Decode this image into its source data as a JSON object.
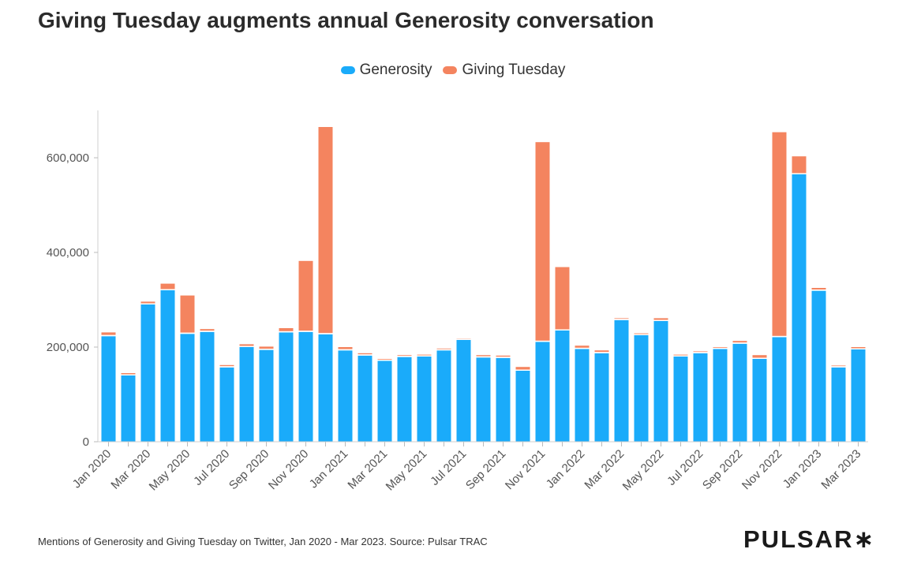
{
  "title": "Giving Tuesday augments annual Generosity conversation",
  "caption": "Mentions of Generosity and Giving Tuesday on Twitter, Jan 2020 - Mar 2023. Source: Pulsar TRAC",
  "logo": "PULSAR∗",
  "colors": {
    "generosity": "#1aabfa",
    "giving_tuesday": "#f4845f"
  },
  "chart_data": {
    "type": "bar",
    "stacked": true,
    "title": "Giving Tuesday augments annual Generosity conversation",
    "categories": [
      "Jan 2020",
      "Feb 2020",
      "Mar 2020",
      "Apr 2020",
      "May 2020",
      "Jun 2020",
      "Jul 2020",
      "Aug 2020",
      "Sep 2020",
      "Oct 2020",
      "Nov 2020",
      "Dec 2020",
      "Jan 2021",
      "Feb 2021",
      "Mar 2021",
      "Apr 2021",
      "May 2021",
      "Jun 2021",
      "Jul 2021",
      "Aug 2021",
      "Sep 2021",
      "Oct 2021",
      "Nov 2021",
      "Dec 2021",
      "Jan 2022",
      "Feb 2022",
      "Mar 2022",
      "Apr 2022",
      "May 2022",
      "Jun 2022",
      "Jul 2022",
      "Aug 2022",
      "Sep 2022",
      "Oct 2022",
      "Nov 2022",
      "Dec 2022",
      "Jan 2023",
      "Feb 2023",
      "Mar 2023"
    ],
    "tick_labels": [
      "Jan 2020",
      "",
      "Mar 2020",
      "",
      "May 2020",
      "",
      "Jul 2020",
      "",
      "Sep 2020",
      "",
      "Nov 2020",
      "",
      "Jan 2021",
      "",
      "Mar 2021",
      "",
      "May 2021",
      "",
      "Jul 2021",
      "",
      "Sep 2021",
      "",
      "Nov 2021",
      "",
      "Jan 2022",
      "",
      "Mar 2022",
      "",
      "May 2022",
      "",
      "Jul 2022",
      "",
      "Sep 2022",
      "",
      "Nov 2022",
      "",
      "Jan 2023",
      "",
      "Mar 2023"
    ],
    "series": [
      {
        "name": "Generosity",
        "color": "#1aabfa",
        "values": [
          223000,
          140000,
          290000,
          320000,
          228000,
          232000,
          157000,
          200000,
          194000,
          231000,
          232000,
          227000,
          193000,
          182000,
          171000,
          179000,
          180000,
          193000,
          215000,
          178000,
          177000,
          150000,
          211000,
          235000,
          196000,
          187000,
          257000,
          225000,
          255000,
          180000,
          187000,
          196000,
          207000,
          175000,
          221000,
          565000,
          319000,
          157000,
          195000
        ]
      },
      {
        "name": "Giving Tuesday",
        "color": "#f4845f",
        "values": [
          8000,
          5000,
          6000,
          14000,
          81000,
          6000,
          5000,
          6000,
          7000,
          9000,
          150000,
          438000,
          7000,
          5000,
          4000,
          4000,
          4000,
          4000,
          3000,
          5000,
          5000,
          8000,
          422000,
          134000,
          7000,
          6000,
          4000,
          4000,
          6000,
          4000,
          4000,
          4000,
          6000,
          8000,
          433000,
          38000,
          6000,
          4000,
          5000
        ]
      }
    ],
    "yticks": [
      "0",
      "200,000",
      "400,000",
      "600,000"
    ],
    "ylim": [
      0,
      700000
    ],
    "legend": "top-center",
    "grid": false
  }
}
